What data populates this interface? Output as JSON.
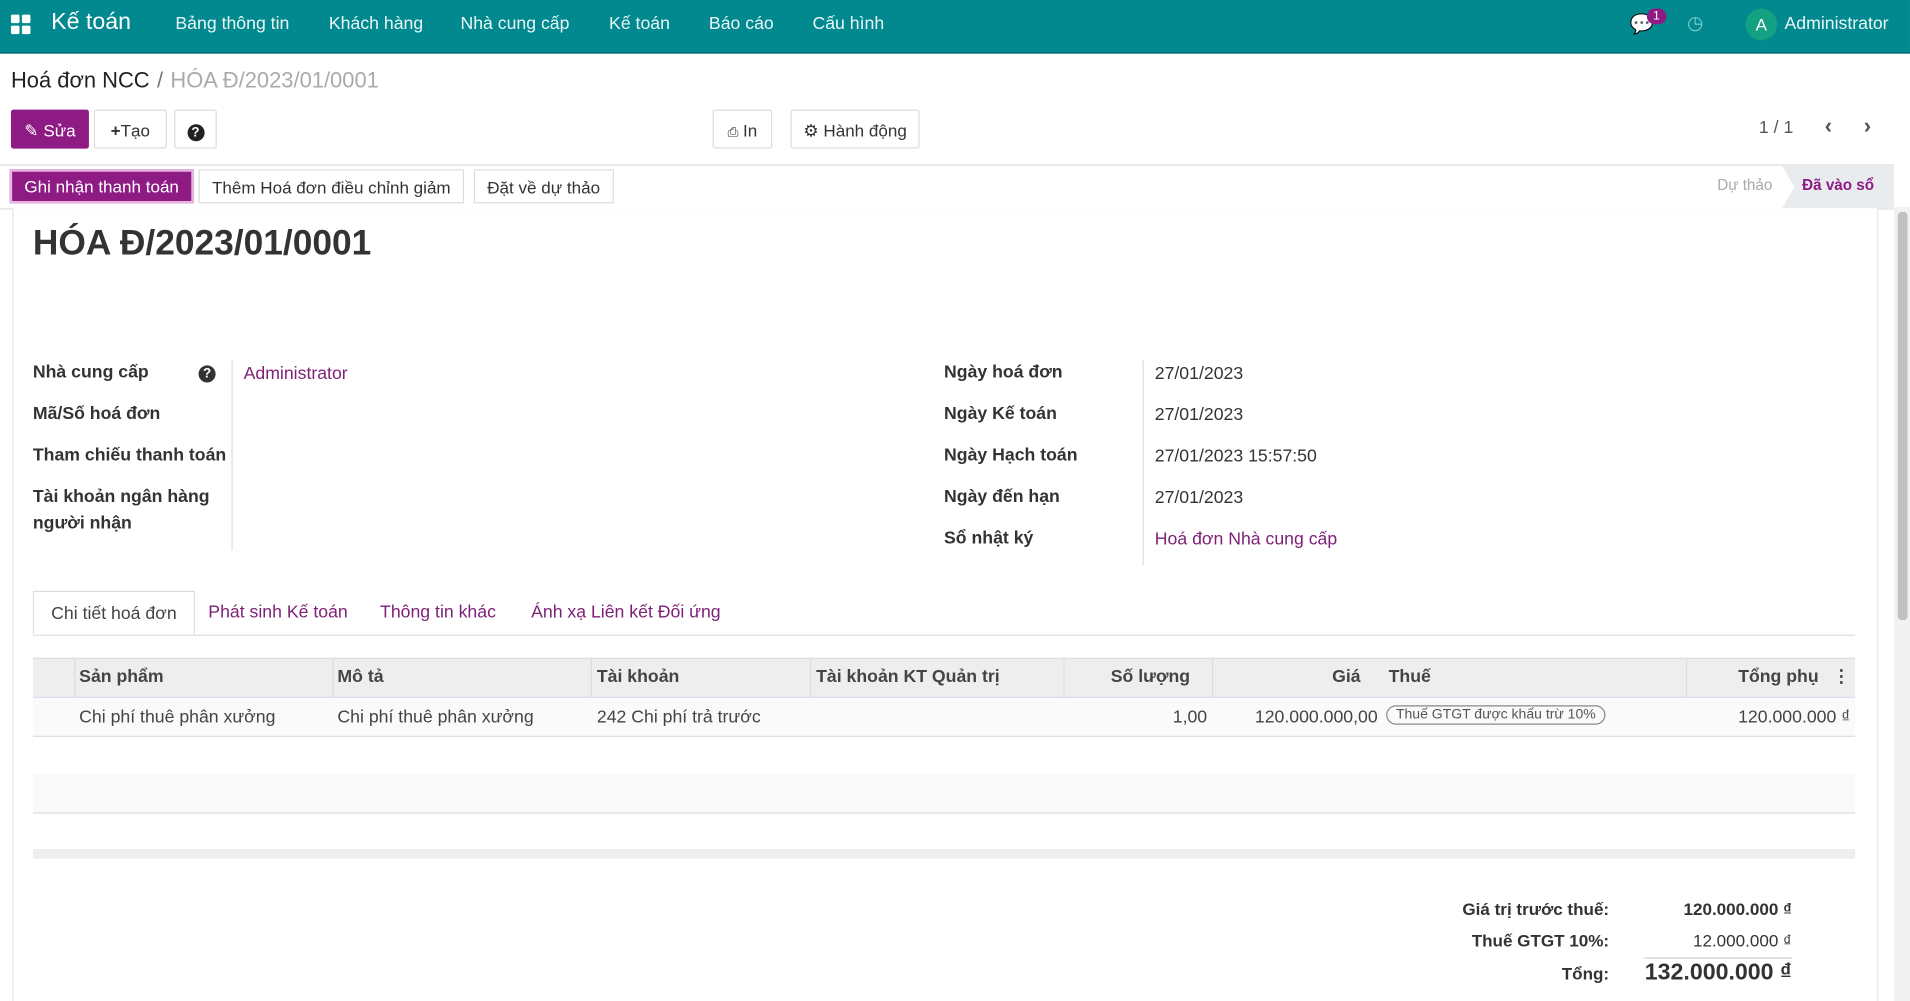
{
  "navbar": {
    "app": "Kế toán",
    "menu": [
      "Bảng thông tin",
      "Khách hàng",
      "Nhà cung cấp",
      "Kế toán",
      "Báo cáo",
      "Cấu hình"
    ],
    "messages_badge": "1",
    "user_initial": "A",
    "user": "Administrator",
    "color": "#01898f"
  },
  "breadcrumb": {
    "parent": "Hoá đơn NCC",
    "separator": "/",
    "current": "HÓA Đ/2023/01/0001"
  },
  "toolbar": {
    "edit": "Sửa",
    "create": "Tạo",
    "print": "In",
    "action": "Hành động",
    "pager": "1 / 1"
  },
  "statusbar": {
    "buttons": [
      "Ghi nhận thanh toán",
      "Thêm Hoá đơn điều chỉnh giảm",
      "Đặt về dự thảo"
    ],
    "stages": [
      "Dự thảo",
      "Đã vào sổ"
    ],
    "active_stage": "Đã vào sổ",
    "accent": "#8e1a84"
  },
  "form": {
    "title": "HÓA Đ/2023/01/0001",
    "left": [
      {
        "label": "Nhà cung cấp",
        "value": "Administrator"
      },
      {
        "label": "Mã/Số hoá đơn",
        "value": ""
      },
      {
        "label": "Tham chiếu thanh toán",
        "value": ""
      },
      {
        "label": "Tài khoản ngân hàng người nhận",
        "value": ""
      }
    ],
    "right": [
      {
        "label": "Ngày hoá đơn",
        "value": "27/01/2023"
      },
      {
        "label": "Ngày Kế toán",
        "value": "27/01/2023"
      },
      {
        "label": "Ngày Hạch toán",
        "value": "27/01/2023 15:57:50"
      },
      {
        "label": "Ngày đến hạn",
        "value": "27/01/2023"
      },
      {
        "label": "Sổ nhật ký",
        "value": "Hoá đơn Nhà cung cấp"
      }
    ]
  },
  "tabs": [
    "Chi tiết hoá đơn",
    "Phát sinh Kế toán",
    "Thông tin khác",
    "Ánh xạ Liên kết Đối ứng"
  ],
  "table": {
    "columns": [
      "Sản phẩm",
      "Mô tả",
      "Tài khoản",
      "Tài khoản KT Quản trị",
      "Số lượng",
      "Giá",
      "Thuế",
      "Tổng phụ"
    ],
    "rows": [
      {
        "product": "Chi phí thuê phân xưởng",
        "description": "Chi phí thuê phân xưởng",
        "account": "242 Chi phí trả trước",
        "analytic": "",
        "qty": "1,00",
        "price": "120.000.000,00",
        "tax": "Thuế GTGT được khấu trừ 10%",
        "subtotal": "120.000.000 ₫"
      }
    ]
  },
  "totals": {
    "untaxed_label": "Giá trị trước thuế:",
    "untaxed": "120.000.000 ₫",
    "tax_label": "Thuế GTGT 10%:",
    "tax": "12.000.000 ₫",
    "total_label": "Tổng:",
    "total": "132.000.000 ₫"
  }
}
